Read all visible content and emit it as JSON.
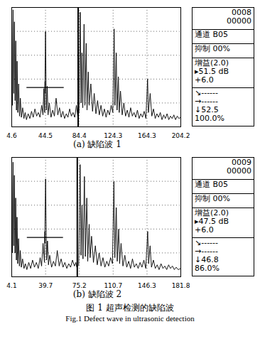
{
  "figure": {
    "title": "图 1  超声检测的缺陷波",
    "subtitle": "Fig.1  Defect wave in ultrasonic detection"
  },
  "chart_data": [
    {
      "type": "line",
      "title": "(a) 缺陷波 1",
      "color": "#000000",
      "grid": true,
      "tick_labels": "x",
      "xlim": [
        4.6,
        204.2
      ],
      "xticks": [
        4.6,
        44.5,
        84.4,
        124.3,
        164.3,
        204.2
      ],
      "ylim": [
        0,
        100
      ],
      "yticks": [
        0,
        20,
        40,
        60,
        80,
        100
      ],
      "cursor": 83,
      "gate": {
        "x1": 22,
        "x2": 66,
        "y": 33
      },
      "annotations": [
        [
          "0008",
          "00000"
        ],
        [
          "通道 B05"
        ],
        [
          "抑制 00%"
        ],
        [
          "增益(2.0)",
          "▸51.5 dB",
          "+6.0"
        ],
        [
          "↘------",
          "→------",
          "↓52.5",
          "100.0%"
        ]
      ],
      "x": [
        4.6,
        5.4,
        6.2,
        7.0,
        7.8,
        8.6,
        9.4,
        10.2,
        11.0,
        11.8,
        12.8,
        13.8,
        14.8,
        16.0,
        17.5,
        19.0,
        20.5,
        22.0,
        24.0,
        26.0,
        28.0,
        30.0,
        32.0,
        34.0,
        36.0,
        38.0,
        40.0,
        41.5,
        42.5,
        43.5,
        44.5,
        45.5,
        46.5,
        47.5,
        49.0,
        51.0,
        53.0,
        55.0,
        57.0,
        59.0,
        61.0,
        63.0,
        65.0,
        67.0,
        69.0,
        71.0,
        73.0,
        75.0,
        77.0,
        79.0,
        81.0,
        82.5,
        84.0,
        85.5,
        86.5,
        87.5,
        88.5,
        90.0,
        91.0,
        92.5,
        93.5,
        95.0,
        96.0,
        98.0,
        100.0,
        102.0,
        104.0,
        106.0,
        108.0,
        110.0,
        112.0,
        114.0,
        116.0,
        118.0,
        120.0,
        122.0,
        124.0,
        125.5,
        126.5,
        128.0,
        129.0,
        130.5,
        131.5,
        133.0,
        135.0,
        137.0,
        139.0,
        141.0,
        143.0,
        145.0,
        147.0,
        149.0,
        151.0,
        153.0,
        155.0,
        157.0,
        159.0,
        161.0,
        163.0,
        165.0,
        166.0,
        168.0,
        170.0,
        172.0,
        174.0,
        176.0,
        178.0,
        180.0,
        182.0,
        184.0,
        186.0,
        188.0,
        190.0,
        192.0,
        194.0,
        196.0,
        198.0,
        200.0,
        202.0,
        204.2
      ],
      "values": [
        95,
        18,
        98,
        28,
        88,
        22,
        72,
        14,
        55,
        12,
        36,
        9,
        24,
        8,
        16,
        7,
        12,
        6,
        11,
        7,
        13,
        8,
        15,
        9,
        12,
        8,
        18,
        10,
        32,
        12,
        80,
        14,
        34,
        10,
        20,
        8,
        14,
        9,
        24,
        10,
        16,
        8,
        13,
        7,
        11,
        8,
        15,
        9,
        12,
        8,
        18,
        9,
        12,
        96,
        20,
        62,
        16,
        86,
        18,
        70,
        14,
        46,
        18,
        36,
        13,
        28,
        11,
        22,
        10,
        18,
        9,
        15,
        8,
        14,
        10,
        18,
        12,
        82,
        18,
        62,
        14,
        42,
        12,
        30,
        10,
        20,
        9,
        14,
        8,
        16,
        9,
        12,
        8,
        14,
        7,
        11,
        8,
        13,
        7,
        40,
        12,
        28,
        9,
        15,
        7,
        11,
        8,
        12,
        6,
        10,
        7,
        11,
        6,
        9,
        7,
        10,
        6,
        9,
        7,
        8
      ]
    },
    {
      "type": "line",
      "title": "(b) 缺陷波 2",
      "color": "#000000",
      "grid": true,
      "tick_labels": "x",
      "xlim": [
        4.1,
        181.8
      ],
      "xticks": [
        4.1,
        39.7,
        75.2,
        110.7,
        146.3,
        181.8
      ],
      "ylim": [
        0,
        100
      ],
      "yticks": [
        0,
        20,
        40,
        60,
        80,
        100
      ],
      "cursor": 73,
      "gate": {
        "x1": 20,
        "x2": 58,
        "y": 33
      },
      "annotations": [
        [
          "0009",
          "00000"
        ],
        [
          "通道 B05"
        ],
        [
          "抑制 00%"
        ],
        [
          "增益(2.0)",
          "▸47.5 dB",
          "+6.0"
        ],
        [
          "↘------",
          "→------",
          "↓46.8",
          "86.0%"
        ]
      ],
      "x": [
        4.1,
        4.8,
        5.5,
        6.2,
        6.9,
        7.6,
        8.3,
        9.0,
        9.7,
        10.4,
        11.3,
        12.2,
        13.1,
        14.2,
        15.5,
        17.0,
        18.5,
        20.0,
        22.0,
        24.0,
        26.0,
        28.0,
        30.0,
        32.0,
        34.0,
        35.5,
        37.0,
        38.5,
        39.7,
        40.7,
        41.7,
        42.7,
        44.0,
        46.0,
        48.0,
        50.0,
        52.0,
        54.0,
        56.0,
        58.0,
        60.0,
        62.0,
        64.0,
        66.0,
        68.0,
        70.0,
        71.5,
        72.5,
        74.5,
        76.0,
        77.0,
        78.0,
        79.0,
        80.5,
        81.5,
        83.0,
        84.0,
        85.5,
        86.5,
        88.0,
        90.0,
        92.0,
        94.0,
        96.0,
        98.0,
        100.0,
        102.0,
        104.0,
        106.0,
        108.0,
        110.0,
        111.5,
        112.5,
        114.0,
        115.0,
        116.5,
        117.5,
        119.0,
        121.0,
        123.0,
        125.0,
        127.0,
        129.0,
        131.0,
        133.0,
        135.0,
        137.0,
        139.0,
        141.0,
        143.0,
        145.0,
        147.0,
        148.0,
        149.5,
        151.0,
        153.0,
        155.0,
        157.0,
        159.0,
        161.0,
        163.0,
        165.0,
        167.0,
        169.0,
        171.0,
        173.0,
        175.0,
        177.0,
        179.0,
        181.8
      ],
      "values": [
        92,
        20,
        96,
        26,
        85,
        20,
        66,
        14,
        50,
        11,
        32,
        9,
        22,
        8,
        15,
        7,
        11,
        6,
        12,
        7,
        14,
        8,
        12,
        7,
        16,
        9,
        28,
        12,
        82,
        14,
        30,
        10,
        18,
        8,
        13,
        9,
        22,
        9,
        15,
        8,
        12,
        7,
        11,
        8,
        14,
        9,
        12,
        8,
        10,
        94,
        18,
        60,
        15,
        84,
        17,
        66,
        13,
        44,
        16,
        34,
        12,
        26,
        10,
        20,
        9,
        16,
        8,
        13,
        9,
        16,
        11,
        80,
        16,
        58,
        13,
        40,
        11,
        28,
        9,
        18,
        8,
        13,
        7,
        15,
        8,
        11,
        7,
        12,
        8,
        14,
        7,
        38,
        11,
        26,
        8,
        14,
        7,
        10,
        6,
        11,
        7,
        9,
        6,
        10,
        7,
        9,
        6,
        8,
        6,
        7
      ]
    }
  ]
}
